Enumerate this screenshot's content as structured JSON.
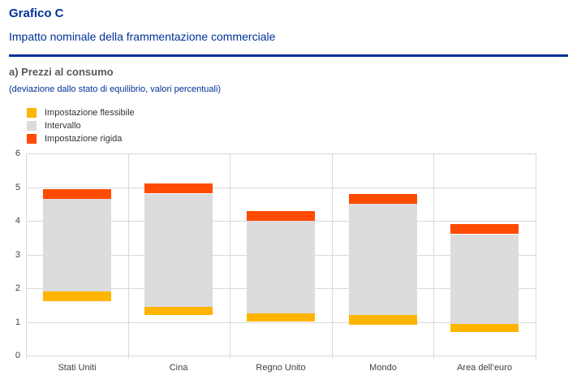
{
  "header": {
    "chart_label": "Grafico C",
    "title": "Impatto nominale della frammentazione commerciale"
  },
  "panel": {
    "title": "a) Prezzi al consumo",
    "note": "(deviazione dallo stato di equilibrio, valori percentuali)"
  },
  "colors": {
    "brand_blue": "#003299",
    "flexible_yellow": "#FFB400",
    "interval_gray": "#DCDCDC",
    "rigid_orange": "#FF4B00",
    "panel_title_gray": "#58595B",
    "axis_text": "#3F3F3F",
    "gridline": "#D9D9D9"
  },
  "legend": [
    {
      "label": "Impostazione flessibile",
      "color": "#FFB400",
      "icon": "yellow-square-swatch"
    },
    {
      "label": "Intervallo",
      "color": "#DCDCDC",
      "icon": "gray-square-swatch"
    },
    {
      "label": "Impostazione rigida",
      "color": "#FF4B00",
      "icon": "orange-square-swatch"
    }
  ],
  "chart_data": {
    "type": "bar",
    "subtype": "floating-stacked-range",
    "title": "a) Prezzi al consumo",
    "subtitle": "(deviazione dallo stato di equilibrio, valori percentuali)",
    "categories": [
      "Stati Uniti",
      "Cina",
      "Regno Unito",
      "Mondo",
      "Area dell’euro"
    ],
    "series": [
      {
        "name": "Impostazione flessibile",
        "color": "#FFB400",
        "from": [
          1.6,
          1.2,
          1.0,
          0.9,
          0.7
        ],
        "to": [
          1.9,
          1.45,
          1.25,
          1.2,
          0.95
        ]
      },
      {
        "name": "Intervallo",
        "color": "#DCDCDC",
        "from": [
          1.9,
          1.45,
          1.25,
          1.2,
          0.95
        ],
        "to": [
          4.65,
          4.8,
          4.0,
          4.5,
          3.6
        ]
      },
      {
        "name": "Impostazione rigida",
        "color": "#FF4B00",
        "from": [
          4.65,
          4.8,
          4.0,
          4.5,
          3.6
        ],
        "to": [
          4.95,
          5.1,
          4.3,
          4.8,
          3.9
        ]
      }
    ],
    "ylim": [
      0,
      6
    ],
    "yticks": [
      0,
      1,
      2,
      3,
      4,
      5,
      6
    ],
    "grid": true,
    "legend_position": "top-left"
  }
}
